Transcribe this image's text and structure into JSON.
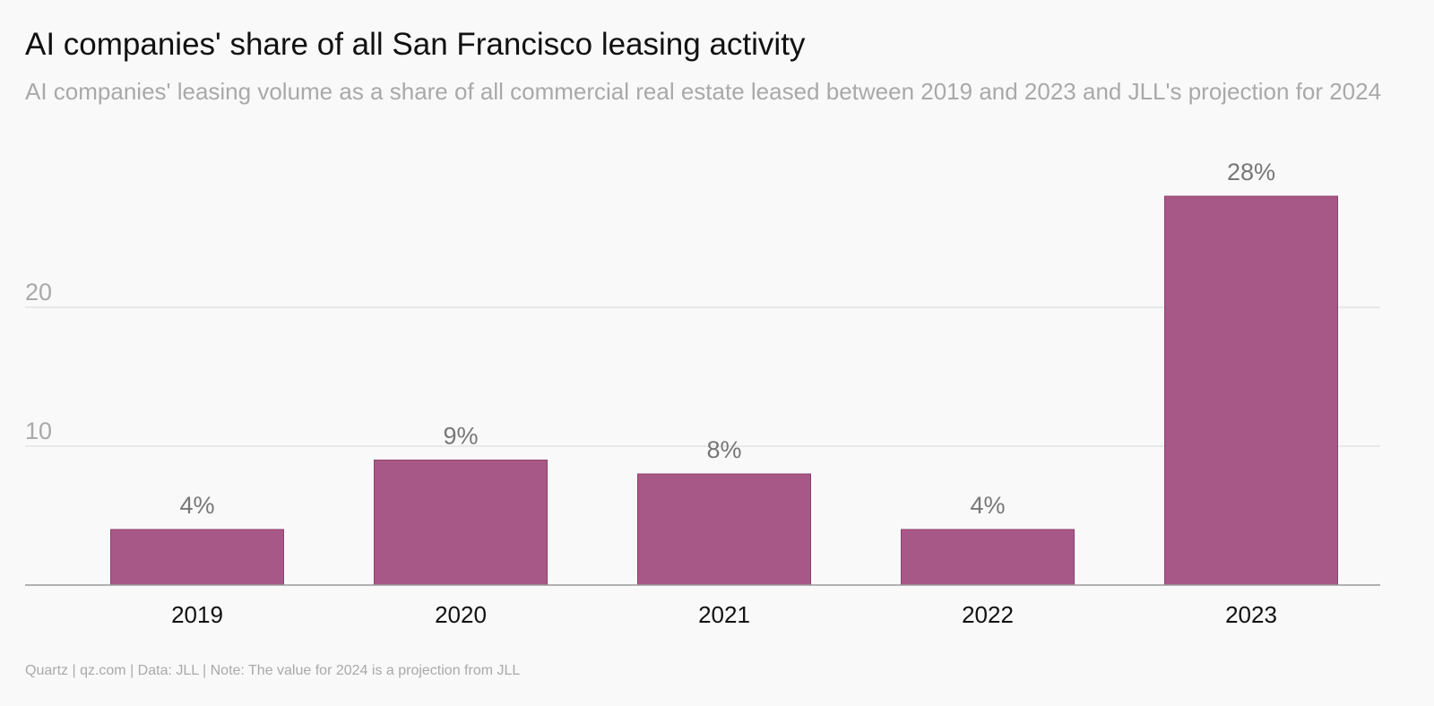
{
  "header": {
    "title": "AI companies' share of all San Francisco leasing activity",
    "subtitle": "AI companies' leasing volume as a share of all commercial real estate leased between 2019 and 2023 and JLL's projection for 2024"
  },
  "footer": {
    "source": "Quartz | qz.com | Data: JLL | Note: The value for 2024 is a projection from JLL"
  },
  "chart_data": {
    "type": "bar",
    "title": "AI companies' share of all San Francisco leasing activity",
    "subtitle": "AI companies' leasing volume as a share of all commercial real estate leased between 2019 and 2023 and JLL's projection for 2024",
    "xlabel": "",
    "ylabel": "",
    "categories": [
      "2019",
      "2020",
      "2021",
      "2022",
      "2023"
    ],
    "values": [
      4,
      9,
      8,
      4,
      28
    ],
    "data_labels": [
      "4%",
      "9%",
      "8%",
      "4%",
      "28%"
    ],
    "yticks": [
      10,
      20
    ],
    "ylim": [
      0,
      30
    ],
    "grid": true,
    "legend": "none",
    "colors": {
      "bar": "#a85886",
      "bar_stroke": "#8e3f6e",
      "gridline": "#e4e4e4",
      "baseline": "#999999",
      "tick_label": "#a9a9a9",
      "category_label": "#111111",
      "data_label": "#777777"
    }
  }
}
